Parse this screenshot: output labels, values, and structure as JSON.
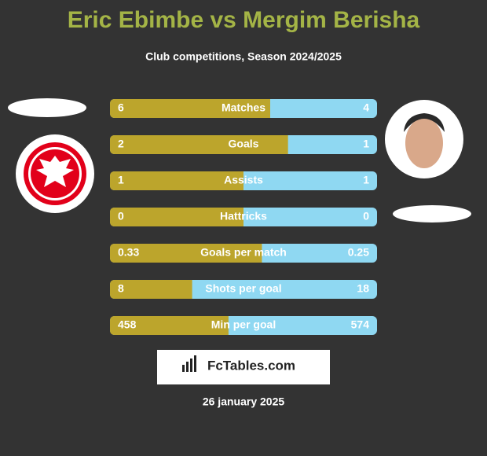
{
  "chart_data": {
    "type": "bar",
    "title": "Eric Ebimbe vs Mergim Berisha",
    "subtitle": "Club competitions, Season 2024/2025",
    "categories": [
      "Matches",
      "Goals",
      "Assists",
      "Hattricks",
      "Goals per match",
      "Shots per goal",
      "Min per goal"
    ],
    "series": [
      {
        "color": "#bca52c",
        "values": [
          6,
          2,
          1,
          0,
          0.33,
          8,
          458
        ]
      },
      {
        "color": "#8fd8f2",
        "values": [
          4,
          1,
          1,
          0,
          0.25,
          18,
          574
        ]
      }
    ],
    "brand": "FcTables.com",
    "date": "26 january 2025"
  }
}
